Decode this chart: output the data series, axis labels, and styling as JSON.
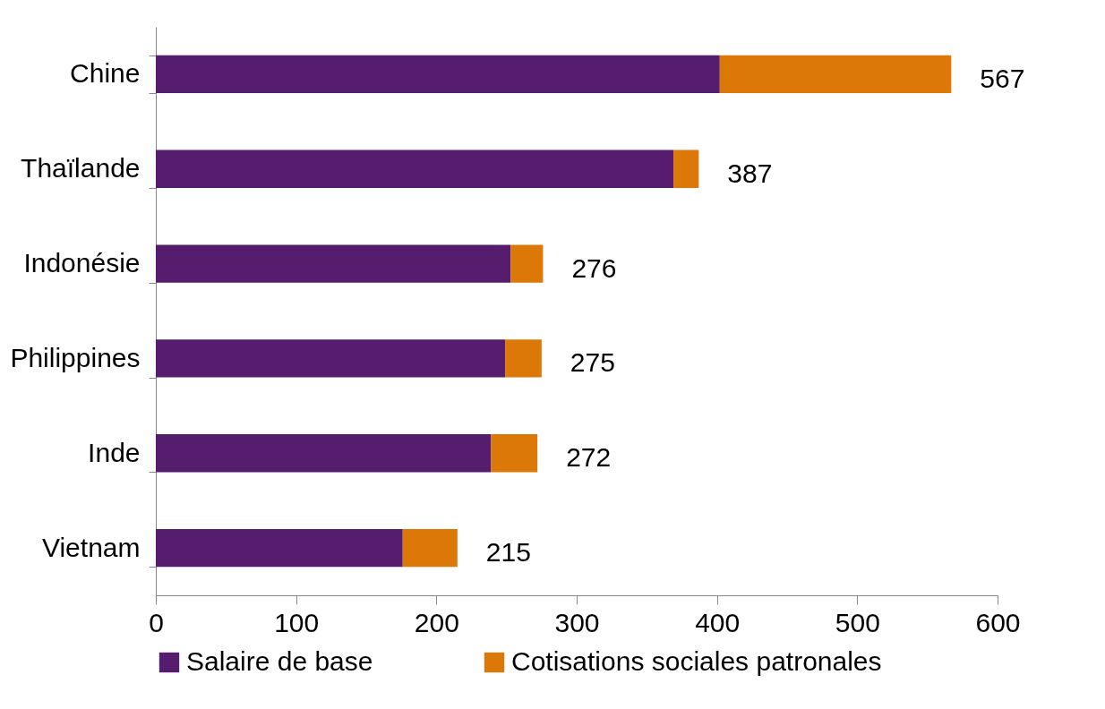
{
  "chart_data": {
    "type": "bar",
    "orientation": "horizontal",
    "stacked": true,
    "categories": [
      "Chine",
      "Thaïlande",
      "Indonésie",
      "Philippines",
      "Inde",
      "Vietnam"
    ],
    "series": [
      {
        "name": "Salaire de base",
        "color": "#561c6e",
        "values": [
          402,
          369,
          253,
          249,
          239,
          176
        ]
      },
      {
        "name": "Cotisations sociales patronales",
        "color": "#dc7808",
        "values": [
          165,
          18,
          23,
          26,
          33,
          39
        ]
      }
    ],
    "totals": [
      "567",
      "387",
      "276",
      "275",
      "272",
      "215"
    ],
    "xlim": [
      0,
      600
    ],
    "xticks": [
      0,
      100,
      200,
      300,
      400,
      500,
      600
    ],
    "grid": false,
    "legend": "bottom"
  }
}
